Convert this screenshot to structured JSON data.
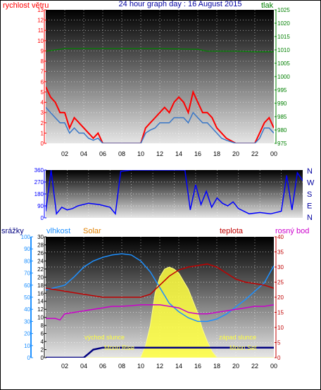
{
  "title": "24 hour graph day : 16 August 2015",
  "colors": {
    "wind": "#ff0000",
    "wind_avg": "#3a78c8",
    "pressure": "#008000",
    "direction": "#0000ff",
    "humidity": "#1e90ff",
    "solar": "#ffff40",
    "temperature": "#c00000",
    "dewpoint": "#cc00cc",
    "rain": "#000080",
    "title": "#0000a0",
    "panel_top": "#000000",
    "panel_bottom": "#e8e8e8"
  },
  "top_panel": {
    "left_label": "rychlost větru",
    "right_label": "tlak",
    "left_ticks": [
      "0",
      "1",
      "2",
      "3",
      "4",
      "5",
      "6",
      "7",
      "8",
      "9",
      "10",
      "11",
      "12",
      "13"
    ],
    "right_ticks": [
      "975",
      "980",
      "985",
      "990",
      "995",
      "1000",
      "1005",
      "1010",
      "1015",
      "1020",
      "1025"
    ],
    "x_ticks": [
      "02",
      "04",
      "06",
      "08",
      "10",
      "12",
      "14",
      "16",
      "18",
      "20",
      "22",
      "00"
    ]
  },
  "mid_panel": {
    "left_ticks": [
      "0",
      "90",
      "180",
      "270",
      "360"
    ],
    "compass": [
      "N",
      "W",
      "S",
      "E",
      "N"
    ]
  },
  "bottom_panel": {
    "labels": {
      "rain": "srážky",
      "humidity": "vlhkost",
      "solar": "Solar",
      "temperature": "teplota",
      "dewpoint": "rosný bod"
    },
    "left_outer_ticks": [
      "0",
      "10",
      "20",
      "30",
      "40",
      "50",
      "60",
      "70",
      "80",
      "90",
      "100"
    ],
    "left_inner_ticks": [
      "0",
      "2",
      "4",
      "6",
      "8",
      "10",
      "12",
      "14",
      "16",
      "18",
      "20",
      "22",
      "24",
      "26",
      "28",
      "30"
    ],
    "right_ticks": [
      "0",
      "5",
      "10",
      "15",
      "20",
      "25",
      "30",
      "35",
      "40"
    ],
    "x_ticks": [
      "02",
      "04",
      "06",
      "08",
      "10",
      "12",
      "14",
      "16",
      "18",
      "20",
      "22",
      "00"
    ],
    "annotations": {
      "sunrise": "východ slunce",
      "sunset": "západ slunce",
      "moonrise": "Moon Rise",
      "moonset": "Moon Set"
    }
  },
  "chart_data": [
    {
      "type": "line",
      "title": "24 hour graph day : 16 August 2015",
      "xlabel": "",
      "x_unit": "hour",
      "xlim": [
        0,
        24
      ],
      "series": [
        {
          "name": "rychlost větru",
          "axis": "left",
          "ylim": [
            0,
            13
          ],
          "x": [
            0,
            0.5,
            1,
            1.5,
            2,
            2.5,
            3,
            3.5,
            4,
            4.5,
            5,
            5.5,
            6,
            7,
            8,
            9,
            10,
            10.5,
            11,
            11.5,
            12,
            12.5,
            13,
            13.5,
            14,
            14.5,
            15,
            15.5,
            16,
            16.5,
            17,
            17.5,
            18,
            18.5,
            19,
            20,
            21,
            22,
            22.5,
            23,
            23.5,
            24
          ],
          "y": [
            5.5,
            4.5,
            4,
            3,
            3,
            1.5,
            2.5,
            2,
            1.5,
            1,
            0.5,
            1,
            0,
            0,
            0,
            0,
            0,
            1.5,
            2,
            2.5,
            3,
            3.5,
            3,
            4,
            4.5,
            4,
            3,
            5,
            4,
            3,
            3,
            2.5,
            1.5,
            1,
            0.5,
            0,
            0,
            0,
            1,
            2,
            2.5,
            1.5
          ]
        },
        {
          "name": "rychlost větru (průměr)",
          "axis": "left",
          "ylim": [
            0,
            13
          ],
          "x": [
            0,
            0.5,
            1,
            1.5,
            2,
            2.5,
            3,
            3.5,
            4,
            4.5,
            5,
            5.5,
            6,
            7,
            8,
            9,
            10,
            10.5,
            11,
            11.5,
            12,
            12.5,
            13,
            13.5,
            14,
            14.5,
            15,
            15.5,
            16,
            16.5,
            17,
            17.5,
            18,
            18.5,
            19,
            20,
            21,
            22,
            22.5,
            23,
            23.5,
            24
          ],
          "y": [
            3.5,
            3,
            2.5,
            2,
            2,
            1,
            1.5,
            1,
            1,
            0.5,
            0.3,
            0.5,
            0,
            0,
            0,
            0,
            0,
            1,
            1.3,
            1.5,
            2,
            2,
            2,
            2.5,
            2.5,
            2.5,
            2,
            3,
            2.5,
            2,
            2,
            1.5,
            1,
            0.5,
            0.3,
            0,
            0,
            0,
            0.5,
            1.5,
            1.5,
            1
          ]
        },
        {
          "name": "tlak",
          "axis": "right",
          "ylim": [
            975,
            1025
          ],
          "x": [
            0,
            1,
            2,
            4,
            8,
            12,
            16,
            17,
            18,
            20,
            22,
            24
          ],
          "y": [
            1009.5,
            1010,
            1010.5,
            1010.5,
            1010.5,
            1010.5,
            1010.2,
            1009.5,
            1009.5,
            1009.5,
            1009.3,
            1009.3
          ]
        }
      ]
    },
    {
      "type": "line",
      "xlim": [
        0,
        24
      ],
      "ylim": [
        0,
        360
      ],
      "series": [
        {
          "name": "směr větru",
          "x": [
            0,
            0.5,
            1,
            1.5,
            2,
            2.5,
            3,
            4,
            5,
            6,
            6.5,
            7,
            8,
            9,
            10,
            11,
            12,
            13,
            13.5,
            14,
            14.5,
            15,
            15.5,
            16,
            16.5,
            17,
            17.5,
            18,
            18.5,
            19,
            20,
            21,
            22,
            22.5,
            23,
            23.5,
            24
          ],
          "y": [
            50,
            360,
            30,
            80,
            60,
            70,
            90,
            110,
            100,
            80,
            30,
            350,
            360,
            360,
            360,
            360,
            360,
            360,
            60,
            250,
            100,
            200,
            80,
            150,
            110,
            90,
            120,
            70,
            50,
            30,
            40,
            30,
            50,
            320,
            60,
            340,
            280
          ]
        }
      ]
    },
    {
      "type": "line",
      "xlim": [
        0,
        24
      ],
      "series": [
        {
          "name": "vlhkost",
          "axis": "left_outer",
          "ylim": [
            0,
            100
          ],
          "x": [
            0,
            1,
            2,
            3,
            4,
            5,
            6,
            7,
            8,
            9,
            10,
            11,
            12,
            13,
            14,
            15,
            16,
            17,
            18,
            19,
            20,
            21,
            22,
            23,
            24
          ],
          "y": [
            56,
            58,
            60,
            67,
            75,
            80,
            83,
            85,
            86,
            85,
            80,
            71,
            58,
            45,
            38,
            33,
            30,
            30,
            32,
            36,
            42,
            48,
            55,
            62,
            76
          ]
        },
        {
          "name": "Solar",
          "axis": "left_inner",
          "ylim": [
            0,
            30
          ],
          "x": [
            0,
            5,
            6,
            7,
            8,
            9,
            10,
            10.5,
            11,
            11.5,
            12,
            12.5,
            13,
            13.5,
            14,
            14.5,
            15,
            15.5,
            16,
            16.5,
            17,
            17.5,
            18,
            19,
            24
          ],
          "y": [
            0,
            0,
            0,
            0,
            0,
            0,
            0,
            3,
            8,
            16,
            20,
            22,
            22.5,
            22,
            21,
            19,
            17,
            14,
            11,
            7,
            4,
            1.5,
            0,
            0,
            0
          ]
        },
        {
          "name": "teplota",
          "axis": "right",
          "ylim": [
            0,
            40
          ],
          "x": [
            0,
            1,
            2,
            3,
            4,
            5,
            6,
            7,
            8,
            9,
            10,
            11,
            12,
            13,
            14,
            15,
            16,
            17,
            18,
            19,
            20,
            21,
            22,
            23,
            24
          ],
          "y": [
            23,
            22.5,
            22,
            21.5,
            21,
            20.5,
            20,
            20,
            20,
            20,
            20,
            21,
            24,
            27,
            29,
            30,
            30.5,
            31,
            30,
            28,
            26,
            25,
            24.5,
            24,
            23
          ]
        },
        {
          "name": "rosný bod",
          "axis": "right",
          "ylim": [
            0,
            40
          ],
          "x": [
            0,
            1,
            1.5,
            2,
            3,
            4,
            5,
            6,
            7,
            8,
            9,
            10,
            11,
            12,
            13,
            14,
            15,
            16,
            17,
            18,
            19,
            20,
            21,
            22,
            23,
            24
          ],
          "y": [
            13,
            13,
            12.5,
            14.5,
            15,
            15.5,
            16,
            16.5,
            17,
            17,
            17.2,
            17.5,
            17.5,
            17.5,
            17,
            16.5,
            15,
            14.5,
            14.5,
            15,
            15.5,
            16,
            16.5,
            17,
            17,
            17.5
          ]
        },
        {
          "name": "srážky",
          "axis": "left_inner",
          "ylim": [
            0,
            30
          ],
          "x": [
            0,
            4,
            4.5,
            5,
            6,
            8,
            10,
            12,
            14,
            16,
            18,
            20,
            22,
            24
          ],
          "y": [
            0,
            0,
            1,
            2,
            2.5,
            2.5,
            2.5,
            2.5,
            2.5,
            2.5,
            2.5,
            2.5,
            2.5,
            2.5
          ]
        }
      ]
    }
  ]
}
